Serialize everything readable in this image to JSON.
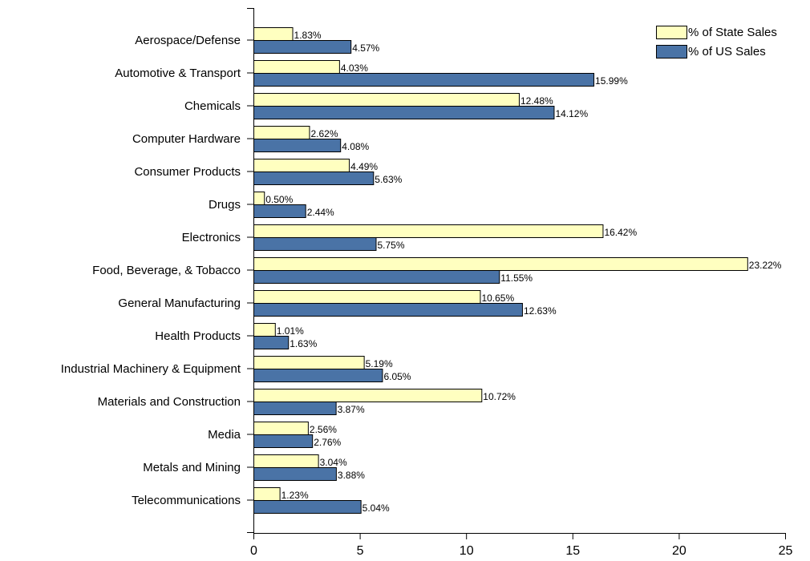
{
  "chart_data": {
    "type": "bar",
    "orientation": "horizontal",
    "categories": [
      "Aerospace/Defense",
      "Automotive & Transport",
      "Chemicals",
      "Computer Hardware",
      "Consumer Products",
      "Drugs",
      "Electronics",
      "Food, Beverage, & Tobacco",
      "General Manufacturing",
      "Health Products",
      "Industrial Machinery & Equipment",
      "Materials and Construction",
      "Media",
      "Metals and Mining",
      "Telecommunications"
    ],
    "series": [
      {
        "name": "% of State Sales",
        "color": "#ffffc0",
        "values": [
          1.83,
          4.03,
          12.48,
          2.62,
          4.49,
          0.5,
          16.42,
          23.22,
          10.65,
          1.01,
          5.19,
          10.72,
          2.56,
          3.04,
          1.23
        ],
        "labels": [
          "1.83%",
          "4.03%",
          "12.48%",
          "2.62%",
          "4.49%",
          "0.50%",
          "16.42%",
          "23.22%",
          "10.65%",
          "1.01%",
          "5.19%",
          "10.72%",
          "2.56%",
          "3.04%",
          "1.23%"
        ]
      },
      {
        "name": "% of US Sales",
        "color": "#4a73a6",
        "values": [
          4.57,
          15.99,
          14.12,
          4.08,
          5.63,
          2.44,
          5.75,
          11.55,
          12.63,
          1.63,
          6.05,
          3.87,
          2.76,
          3.88,
          5.04
        ],
        "labels": [
          "4.57%",
          "15.99%",
          "14.12%",
          "4.08%",
          "5.63%",
          "2.44%",
          "5.75%",
          "11.55%",
          "12.63%",
          "1.63%",
          "6.05%",
          "3.87%",
          "2.76%",
          "3.88%",
          "5.04%"
        ]
      }
    ],
    "xlim": [
      0,
      25
    ],
    "xticks": [
      0,
      5,
      10,
      15,
      20,
      25
    ],
    "xtick_labels": [
      "0",
      "5",
      "10",
      "15",
      "20",
      "25"
    ],
    "grid": false,
    "legend": "top-right"
  }
}
